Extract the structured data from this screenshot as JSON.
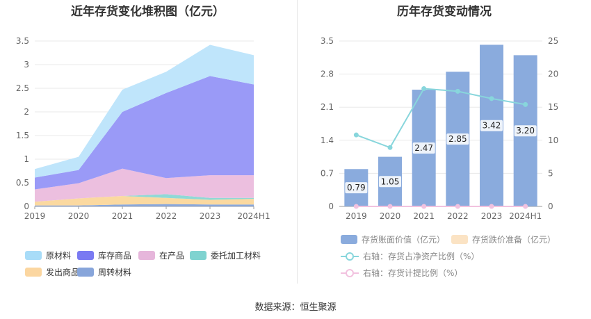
{
  "left_chart": {
    "title": "近年存货变化堆积图（亿元）",
    "chart_data": {
      "type": "area",
      "stacked": true,
      "categories": [
        "2019",
        "2020",
        "2021",
        "2022",
        "2023",
        "2024H1"
      ],
      "y_ticks": [
        "0",
        "0.5",
        "1",
        "1.5",
        "2",
        "2.5",
        "3",
        "3.5"
      ],
      "ylim": [
        0,
        3.5
      ],
      "grid": true,
      "legend_position": "bottom",
      "series": [
        {
          "name": "周转材料",
          "color": "#8aa8db",
          "values": [
            0.02,
            0.02,
            0.04,
            0.05,
            0.04,
            0.04
          ]
        },
        {
          "name": "发出商品",
          "color": "#fbd9a0",
          "values": [
            0.08,
            0.15,
            0.18,
            0.13,
            0.1,
            0.12
          ]
        },
        {
          "name": "委托加工材料",
          "color": "#8fd9d6",
          "values": [
            0.0,
            0.0,
            0.0,
            0.08,
            0.04,
            0.02
          ]
        },
        {
          "name": "在产品",
          "color": "#ecbfdf",
          "values": [
            0.26,
            0.32,
            0.58,
            0.34,
            0.48,
            0.48
          ]
        },
        {
          "name": "库存商品",
          "color": "#9a9af7",
          "values": [
            0.25,
            0.28,
            1.2,
            1.8,
            2.1,
            1.92
          ]
        },
        {
          "name": "原材料",
          "color": "#bfe5fb",
          "values": [
            0.18,
            0.28,
            0.47,
            0.45,
            0.66,
            0.62
          ]
        }
      ],
      "legend_order": [
        "原材料",
        "库存商品",
        "在产品",
        "委托加工材料",
        "发出商品",
        "周转材料"
      ],
      "legend_colors": [
        "#a8dcf8",
        "#7a7af2",
        "#e6b6db",
        "#7fd3d0",
        "#fbd6a0",
        "#87a5da"
      ]
    }
  },
  "right_chart": {
    "title": "历年存货变动情况",
    "chart_data": {
      "type": "bar",
      "categories": [
        "2019",
        "2020",
        "2021",
        "2022",
        "2023",
        "2024H1"
      ],
      "left_ticks": [
        "0",
        "0.7",
        "1.4",
        "2.1",
        "2.8",
        "3.5"
      ],
      "right_ticks": [
        "0",
        "5",
        "10",
        "15",
        "20",
        "25"
      ],
      "ylim_left": [
        0,
        3.5
      ],
      "ylim_right": [
        0,
        25
      ],
      "grid": true,
      "series": [
        {
          "name": "存货账面价值（亿元）",
          "type": "bar",
          "axis": "left",
          "color": "#8aabdd",
          "values": [
            0.79,
            1.05,
            2.47,
            2.85,
            3.42,
            3.2
          ],
          "labels": [
            "0.79",
            "1.05",
            "2.47",
            "2.85",
            "3.42",
            "3.20"
          ]
        },
        {
          "name": "存货跌价准备（亿元）",
          "type": "bar",
          "axis": "left",
          "color": "#fbe3c4",
          "values": [
            0,
            0,
            0,
            0,
            0,
            0
          ]
        },
        {
          "name": "右轴：存货占净资产比例（%）",
          "type": "line",
          "axis": "right",
          "color": "#88d6dc",
          "values": [
            10.8,
            8.9,
            17.8,
            17.4,
            16.3,
            15.4
          ]
        },
        {
          "name": "右轴：存货计提比例（%）",
          "type": "line",
          "axis": "right",
          "color": "#f2c2df",
          "values": [
            0,
            0,
            0,
            0,
            0,
            0
          ]
        }
      ]
    }
  },
  "footer": {
    "source": "数据来源：恒生聚源"
  }
}
